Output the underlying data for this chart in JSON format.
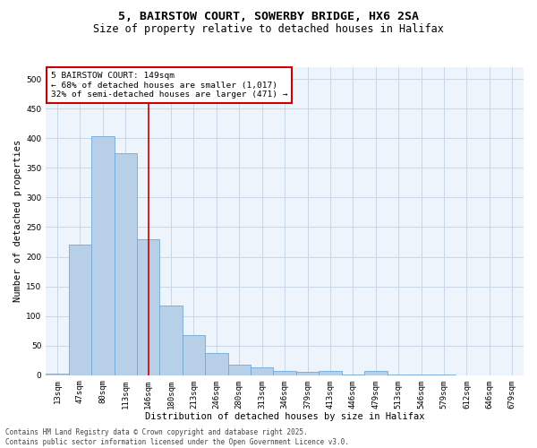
{
  "title1": "5, BAIRSTOW COURT, SOWERBY BRIDGE, HX6 2SA",
  "title2": "Size of property relative to detached houses in Halifax",
  "xlabel": "Distribution of detached houses by size in Halifax",
  "ylabel": "Number of detached properties",
  "categories": [
    "13sqm",
    "47sqm",
    "80sqm",
    "113sqm",
    "146sqm",
    "180sqm",
    "213sqm",
    "246sqm",
    "280sqm",
    "313sqm",
    "346sqm",
    "379sqm",
    "413sqm",
    "446sqm",
    "479sqm",
    "513sqm",
    "546sqm",
    "579sqm",
    "612sqm",
    "646sqm",
    "679sqm"
  ],
  "values": [
    2,
    220,
    403,
    375,
    230,
    118,
    68,
    37,
    17,
    13,
    7,
    5,
    7,
    1,
    7,
    1,
    1,
    1,
    0,
    0,
    0
  ],
  "bar_color": "#b8cfe8",
  "bar_edge_color": "#6fa8d6",
  "vline_x_index": 4,
  "vline_color": "#cc0000",
  "annotation_text": "5 BAIRSTOW COURT: 149sqm\n← 68% of detached houses are smaller (1,017)\n32% of semi-detached houses are larger (471) →",
  "annotation_box_color": "#ffffff",
  "annotation_box_edge_color": "#cc0000",
  "ylim": [
    0,
    520
  ],
  "yticks": [
    0,
    50,
    100,
    150,
    200,
    250,
    300,
    350,
    400,
    450,
    500
  ],
  "grid_color": "#c8d8e8",
  "bg_color": "#eef4fb",
  "footer": "Contains HM Land Registry data © Crown copyright and database right 2025.\nContains public sector information licensed under the Open Government Licence v3.0.",
  "title1_fontsize": 9.5,
  "title2_fontsize": 8.5,
  "axis_label_fontsize": 7.5,
  "tick_fontsize": 6.5,
  "footer_fontsize": 5.5,
  "annotation_fontsize": 6.8
}
